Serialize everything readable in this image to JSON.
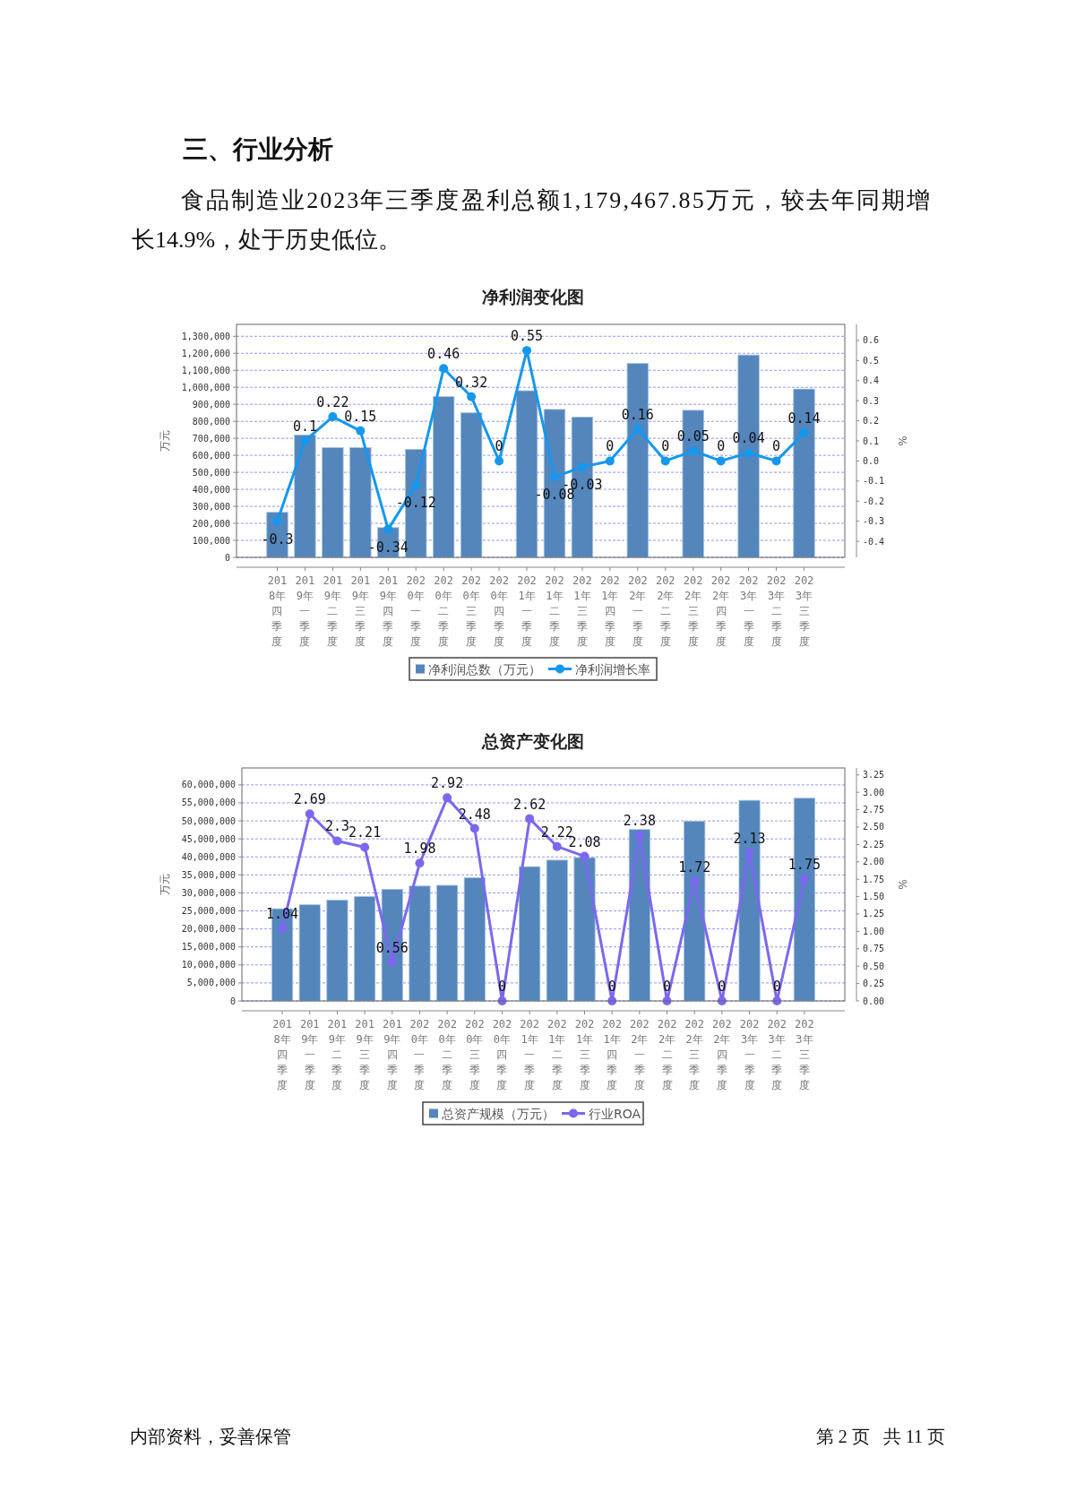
{
  "chart_data": [
    {
      "type": "bar",
      "title": "净利润变化图",
      "annotations": [
        "三、行业分析",
        "食品制造业2023年三季度盈利总额1,179,467.85万元，较去年同期增长14.9%，处于历史低位。"
      ],
      "categories": [
        "2018年四季度",
        "2019年一季度",
        "2019年二季度",
        "2019年三季度",
        "2019年四季度",
        "2020年一季度",
        "2020年二季度",
        "2020年三季度",
        "2020年四季度",
        "2021年一季度",
        "2021年二季度",
        "2021年三季度",
        "2021年四季度",
        "2022年一季度",
        "2022年二季度",
        "2022年三季度",
        "2022年四季度",
        "2023年一季度",
        "2023年二季度",
        "2023年三季度"
      ],
      "ylabel": "万元",
      "y2label": "%",
      "ylim": [
        0,
        1370000
      ],
      "yticks": [
        0,
        {
          "value": 100000,
          "label": "100,000"
        },
        {
          "value": 200000,
          "label": "200,000"
        },
        {
          "value": 300000,
          "label": "300,000"
        },
        {
          "value": 400000,
          "label": "400,000"
        },
        {
          "value": 500000,
          "label": "500,000"
        },
        {
          "value": 600000,
          "label": "600,000"
        },
        {
          "value": 700000,
          "label": "700,000"
        },
        {
          "value": 800000,
          "label": "800,000"
        },
        {
          "value": 900000,
          "label": "900,000"
        },
        {
          "value": 1000000,
          "label": "1,000,000"
        },
        {
          "value": 1100000,
          "label": "1,100,000"
        },
        {
          "value": 1200000,
          "label": "1,200,000"
        },
        {
          "value": 1300000,
          "label": "1,300,000"
        }
      ],
      "y2lim": [
        -0.48,
        0.68
      ],
      "y2ticks": [
        -0.4,
        -0.3,
        -0.2,
        -0.1,
        {
          "value": 0,
          "label": "0.0"
        },
        0.1,
        0.2,
        0.3,
        0.4,
        0.5,
        0.6
      ],
      "grid": "y",
      "legend": "bottom",
      "series": [
        {
          "name": "净利润总数（万元）",
          "color": "#5486bc",
          "values": [
            265000,
            720000,
            645000,
            645000,
            175000,
            635000,
            945000,
            850000,
            null,
            980000,
            870000,
            825000,
            null,
            1140000,
            null,
            865000,
            null,
            1190000,
            null,
            990000
          ]
        },
        {
          "name": "净利润增长率",
          "type": "line",
          "axis": "y2",
          "color": "#1597ee",
          "marker": "circle",
          "line_style": "solid",
          "values": [
            -0.3,
            0.1,
            0.22,
            0.15,
            -0.34,
            -0.12,
            0.46,
            0.32,
            0,
            0.55,
            -0.08,
            -0.03,
            0,
            0.16,
            0,
            0.05,
            0,
            0.04,
            0,
            0.14
          ],
          "value_labels": [
            "-0.3",
            "0.1",
            "0.22",
            "0.15",
            "-0.34",
            "-0.12",
            "0.46",
            "0.32",
            "0",
            "0.55",
            "-0.08",
            "-0.03",
            "0",
            "0.16",
            "0",
            "0.05",
            "0",
            "0.04",
            "0",
            "0.14"
          ]
        }
      ]
    },
    {
      "type": "bar",
      "title": "总资产变化图",
      "annotations": [
        "内部资料，妥善保管",
        "第 2 页   共 11 页"
      ],
      "categories": [
        "2018年四季度",
        "2019年一季度",
        "2019年二季度",
        "2019年三季度",
        "2019年四季度",
        "2020年一季度",
        "2020年二季度",
        "2020年三季度",
        "2020年四季度",
        "2021年一季度",
        "2021年二季度",
        "2021年三季度",
        "2021年四季度",
        "2022年一季度",
        "2022年二季度",
        "2022年三季度",
        "2022年四季度",
        "2023年一季度",
        "2023年二季度",
        "2023年三季度"
      ],
      "ylabel": "万元",
      "y2label": "%",
      "ylim": [
        0,
        64700000
      ],
      "yticks": [
        0,
        {
          "value": 5000000,
          "label": "5,000,000"
        },
        {
          "value": 10000000,
          "label": "10,000,000"
        },
        {
          "value": 15000000,
          "label": "15,000,000"
        },
        {
          "value": 20000000,
          "label": "20,000,000"
        },
        {
          "value": 25000000,
          "label": "25,000,000"
        },
        {
          "value": 30000000,
          "label": "30,000,000"
        },
        {
          "value": 35000000,
          "label": "35,000,000"
        },
        {
          "value": 40000000,
          "label": "40,000,000"
        },
        {
          "value": 45000000,
          "label": "45,000,000"
        },
        {
          "value": 50000000,
          "label": "50,000,000"
        },
        {
          "value": 55000000,
          "label": "55,000,000"
        },
        {
          "value": 60000000,
          "label": "60,000,000"
        }
      ],
      "y2lim": [
        0,
        3.35
      ],
      "y2ticks": [
        {
          "value": 0,
          "label": "0.00"
        },
        0.25,
        {
          "value": 0.5,
          "label": "0.50"
        },
        0.75,
        {
          "value": 1,
          "label": "1.00"
        },
        1.25,
        {
          "value": 1.5,
          "label": "1.50"
        },
        1.75,
        {
          "value": 2,
          "label": "2.00"
        },
        2.25,
        {
          "value": 2.5,
          "label": "2.50"
        },
        2.75,
        {
          "value": 3,
          "label": "3.00"
        },
        3.25
      ],
      "grid": "y",
      "legend": "bottom",
      "series": [
        {
          "name": "总资产规模（万元）",
          "color": "#5486bc",
          "values": [
            25600000,
            26700000,
            28000000,
            29000000,
            31000000,
            31900000,
            32100000,
            34200000,
            null,
            37300000,
            39100000,
            39800000,
            null,
            47600000,
            null,
            49900000,
            null,
            55700000,
            null,
            56300000
          ]
        },
        {
          "name": "行业ROA",
          "type": "line",
          "axis": "y2",
          "color": "#7b68ee",
          "marker": "circle",
          "line_style": "solid",
          "values": [
            1.04,
            2.69,
            2.3,
            2.21,
            0.56,
            1.98,
            2.92,
            2.48,
            0,
            2.62,
            2.22,
            2.08,
            0,
            2.38,
            0,
            1.72,
            0,
            2.13,
            0,
            1.75
          ],
          "value_labels": [
            "1.04",
            "2.69",
            "2.3",
            "2.21",
            "0.56",
            "1.98",
            "2.92",
            "2.48",
            "0",
            "2.62",
            "2.22",
            "2.08",
            "0",
            "2.38",
            "0",
            "1.72",
            "0",
            "2.13",
            "0",
            "1.75"
          ]
        }
      ]
    }
  ]
}
